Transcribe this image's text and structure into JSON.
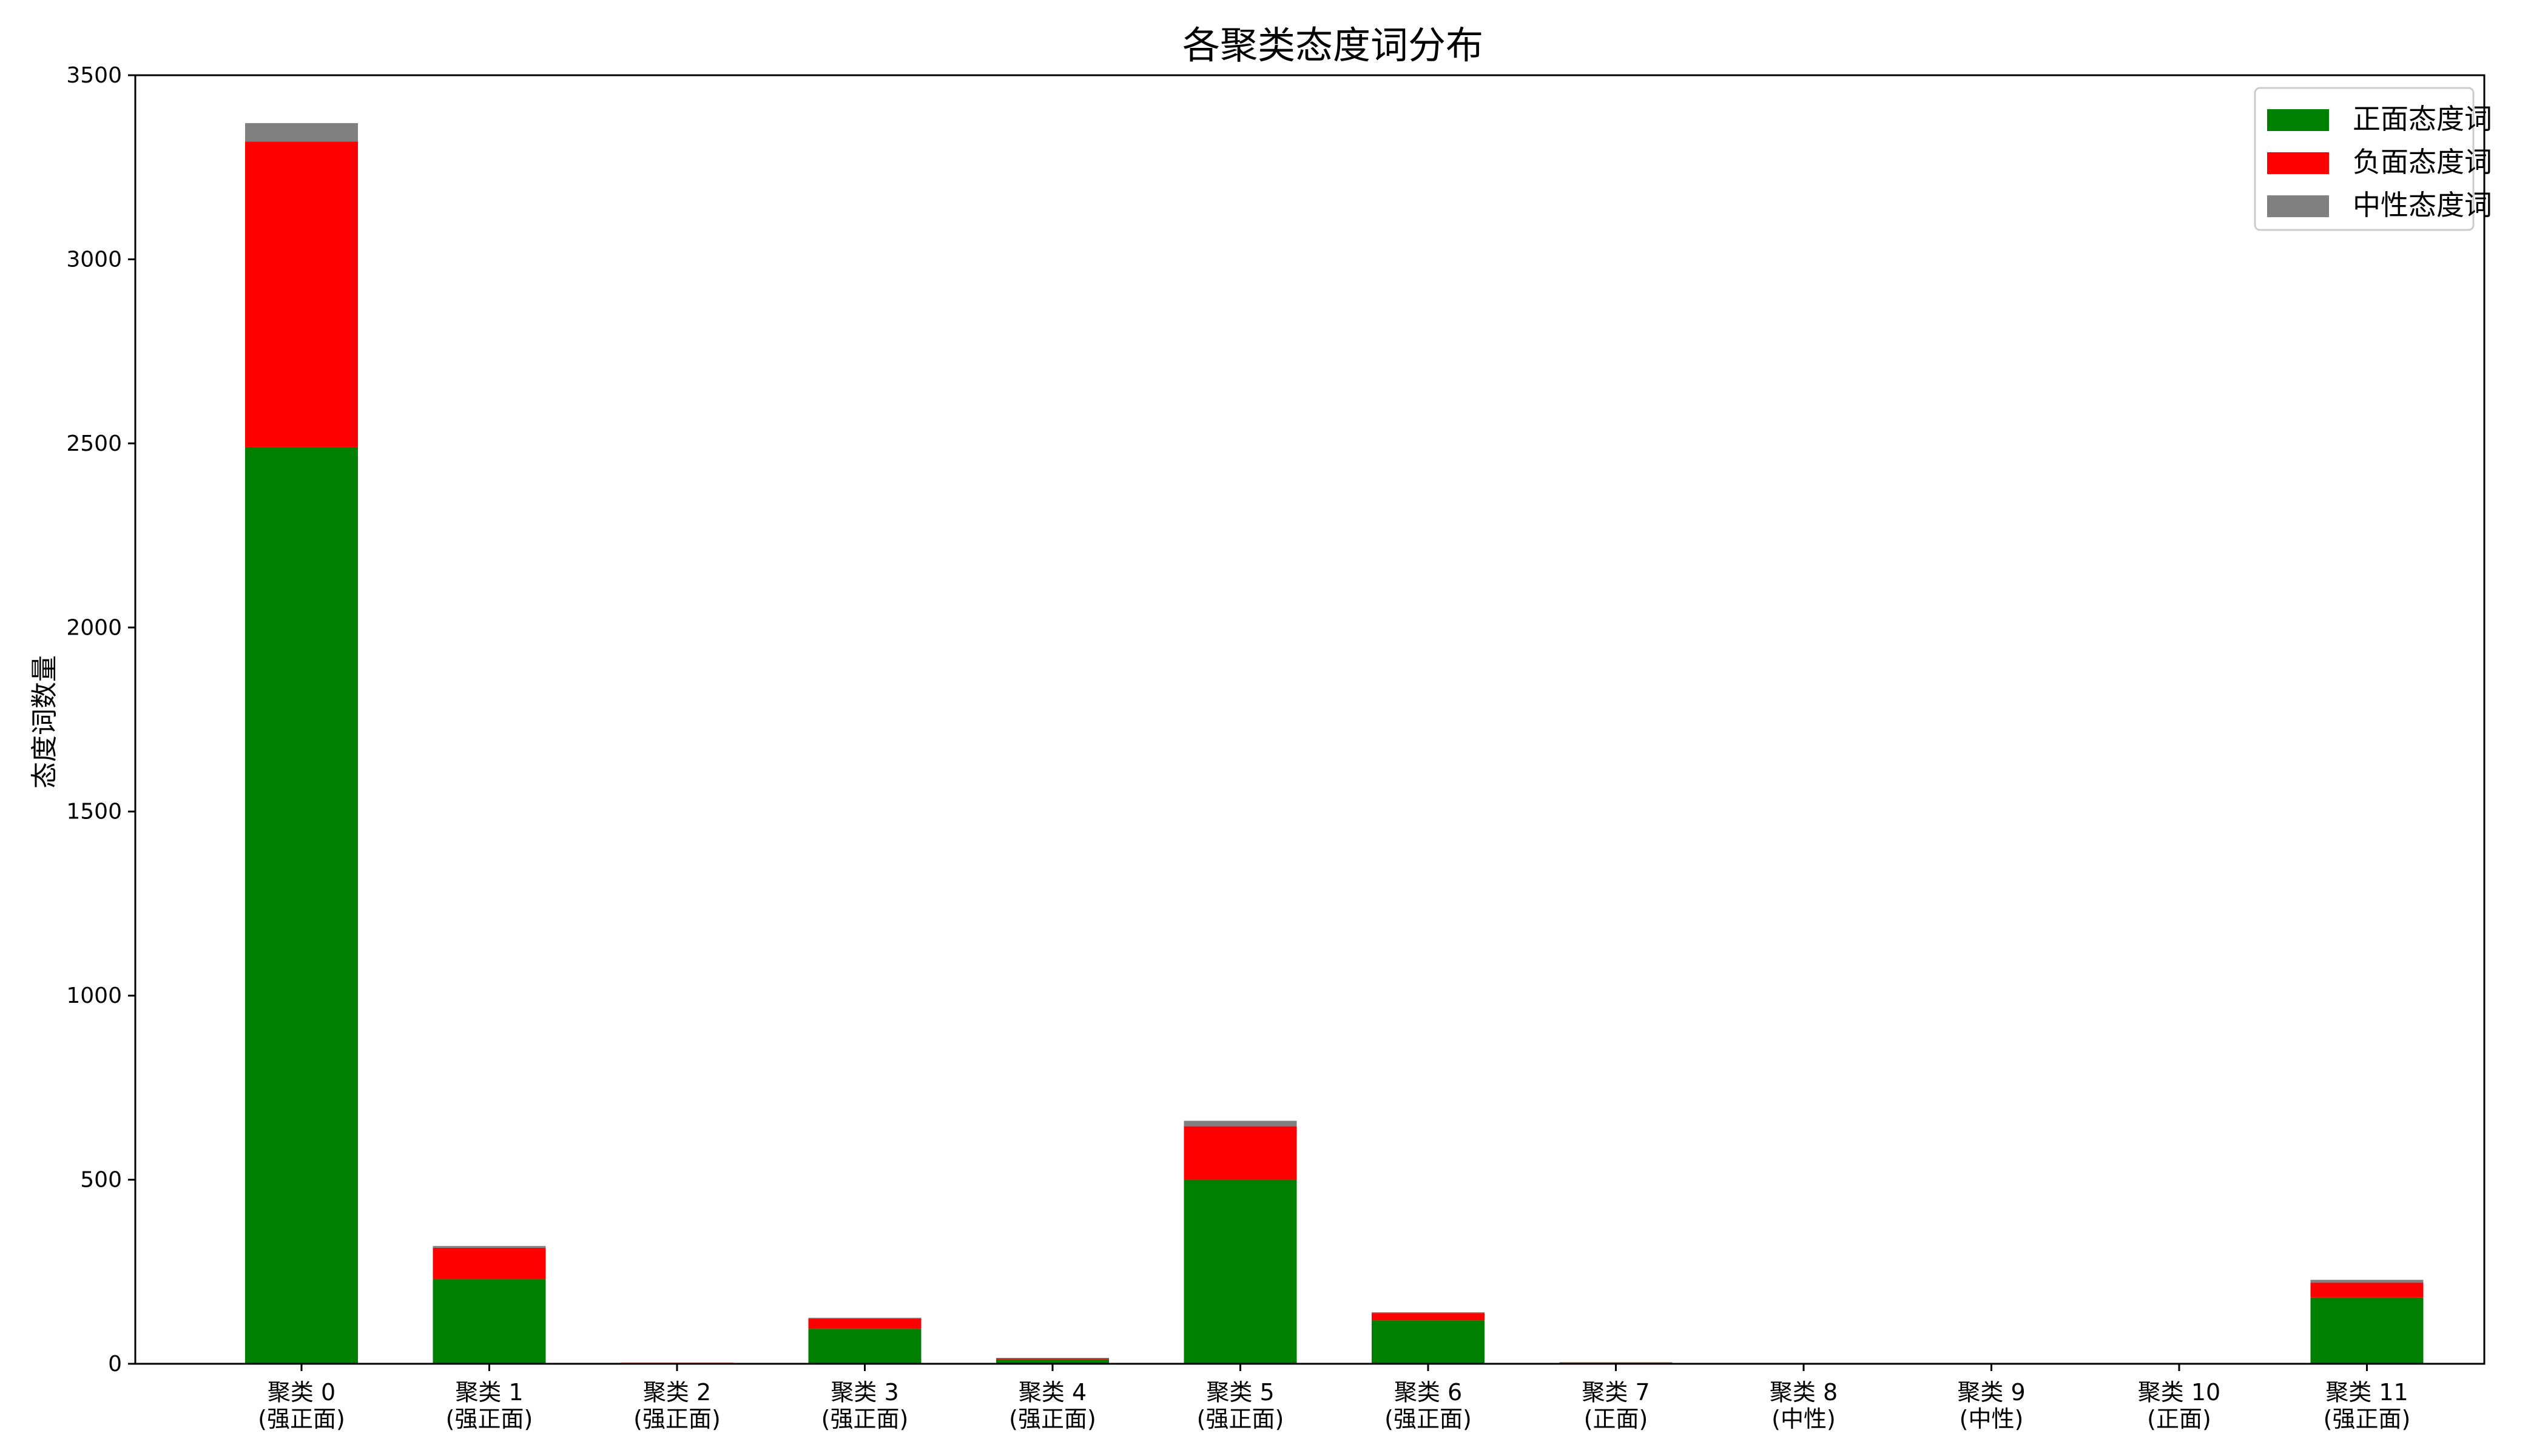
{
  "chart_data": {
    "type": "bar",
    "stacked": true,
    "title": "各聚类态度词分布",
    "xlabel": "",
    "ylabel": "态度词数量",
    "ylim": [
      0,
      3500
    ],
    "yticks": [
      0,
      500,
      1000,
      1500,
      2000,
      2500,
      3000,
      3500
    ],
    "grid": false,
    "legend_position": "top-right",
    "categories": [
      [
        "聚类 0",
        "(强正面)"
      ],
      [
        "聚类 1",
        "(强正面)"
      ],
      [
        "聚类 2",
        "(强正面)"
      ],
      [
        "聚类 3",
        "(强正面)"
      ],
      [
        "聚类 4",
        "(强正面)"
      ],
      [
        "聚类 5",
        "(强正面)"
      ],
      [
        "聚类 6",
        "(强正面)"
      ],
      [
        "聚类 7",
        "(正面)"
      ],
      [
        "聚类 8",
        "(中性)"
      ],
      [
        "聚类 9",
        "(中性)"
      ],
      [
        "聚类 10",
        "(正面)"
      ],
      [
        "聚类 11",
        "(强正面)"
      ]
    ],
    "series": [
      {
        "name": "正面态度词",
        "color": "#008000",
        "values": [
          2490,
          230,
          2,
          95,
          12,
          500,
          118,
          3,
          0,
          0,
          1,
          180
        ]
      },
      {
        "name": "负面态度词",
        "color": "#ff0000",
        "values": [
          830,
          85,
          1,
          28,
          3,
          145,
          20,
          1,
          0,
          0,
          1,
          40
        ]
      },
      {
        "name": "中性态度词",
        "color": "#808080",
        "values": [
          50,
          5,
          0,
          2,
          1,
          15,
          2,
          0,
          0,
          0,
          0,
          8
        ]
      }
    ]
  }
}
